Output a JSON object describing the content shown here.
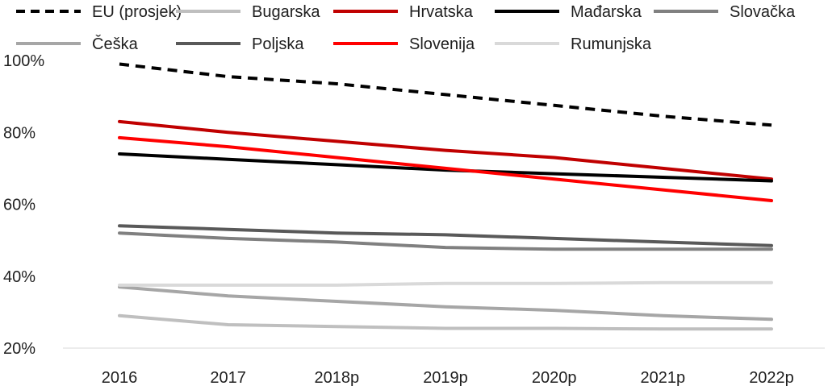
{
  "chart_data": {
    "type": "line",
    "title": "",
    "xlabel": "",
    "ylabel": "",
    "categories": [
      "2016",
      "2017",
      "2018p",
      "2019p",
      "2020p",
      "2021p",
      "2022p"
    ],
    "ylim": [
      20,
      100
    ],
    "yticks": [
      20,
      40,
      60,
      80,
      100
    ],
    "ytick_labels": [
      "20%",
      "40%",
      "60%",
      "80%",
      "100%"
    ],
    "grid": false,
    "legend_position": "top",
    "series": [
      {
        "name": "EU (prosjek)",
        "color": "#000000",
        "dashed": true,
        "values": [
          99,
          95.5,
          93.5,
          90.5,
          87.5,
          84.5,
          82
        ]
      },
      {
        "name": "Bugarska",
        "color": "#bfbfbf",
        "dashed": false,
        "values": [
          29,
          26.5,
          26,
          25.5,
          25.5,
          25.3,
          25.3
        ]
      },
      {
        "name": "Hrvatska",
        "color": "#c00000",
        "dashed": false,
        "values": [
          83,
          80,
          77.5,
          75,
          73,
          70,
          67
        ]
      },
      {
        "name": "Mađarska",
        "color": "#000000",
        "dashed": false,
        "values": [
          74,
          72.5,
          71,
          69.5,
          68.5,
          67.5,
          66.5
        ]
      },
      {
        "name": "Slovačka",
        "color": "#808080",
        "dashed": false,
        "values": [
          52,
          50.5,
          49.5,
          48,
          47.5,
          47.5,
          47.5
        ]
      },
      {
        "name": "Češka",
        "color": "#a6a6a6",
        "dashed": false,
        "values": [
          37,
          34.5,
          33,
          31.5,
          30.5,
          29,
          28
        ]
      },
      {
        "name": "Poljska",
        "color": "#595959",
        "dashed": false,
        "values": [
          54,
          53,
          52,
          51.5,
          50.5,
          49.5,
          48.5
        ]
      },
      {
        "name": "Slovenija",
        "color": "#ff0000",
        "dashed": false,
        "values": [
          78.5,
          76,
          73,
          70,
          67,
          64,
          61
        ]
      },
      {
        "name": "Rumunjska",
        "color": "#d9d9d9",
        "dashed": false,
        "values": [
          37.5,
          37.5,
          37.5,
          38,
          38,
          38.2,
          38.2
        ]
      }
    ]
  }
}
